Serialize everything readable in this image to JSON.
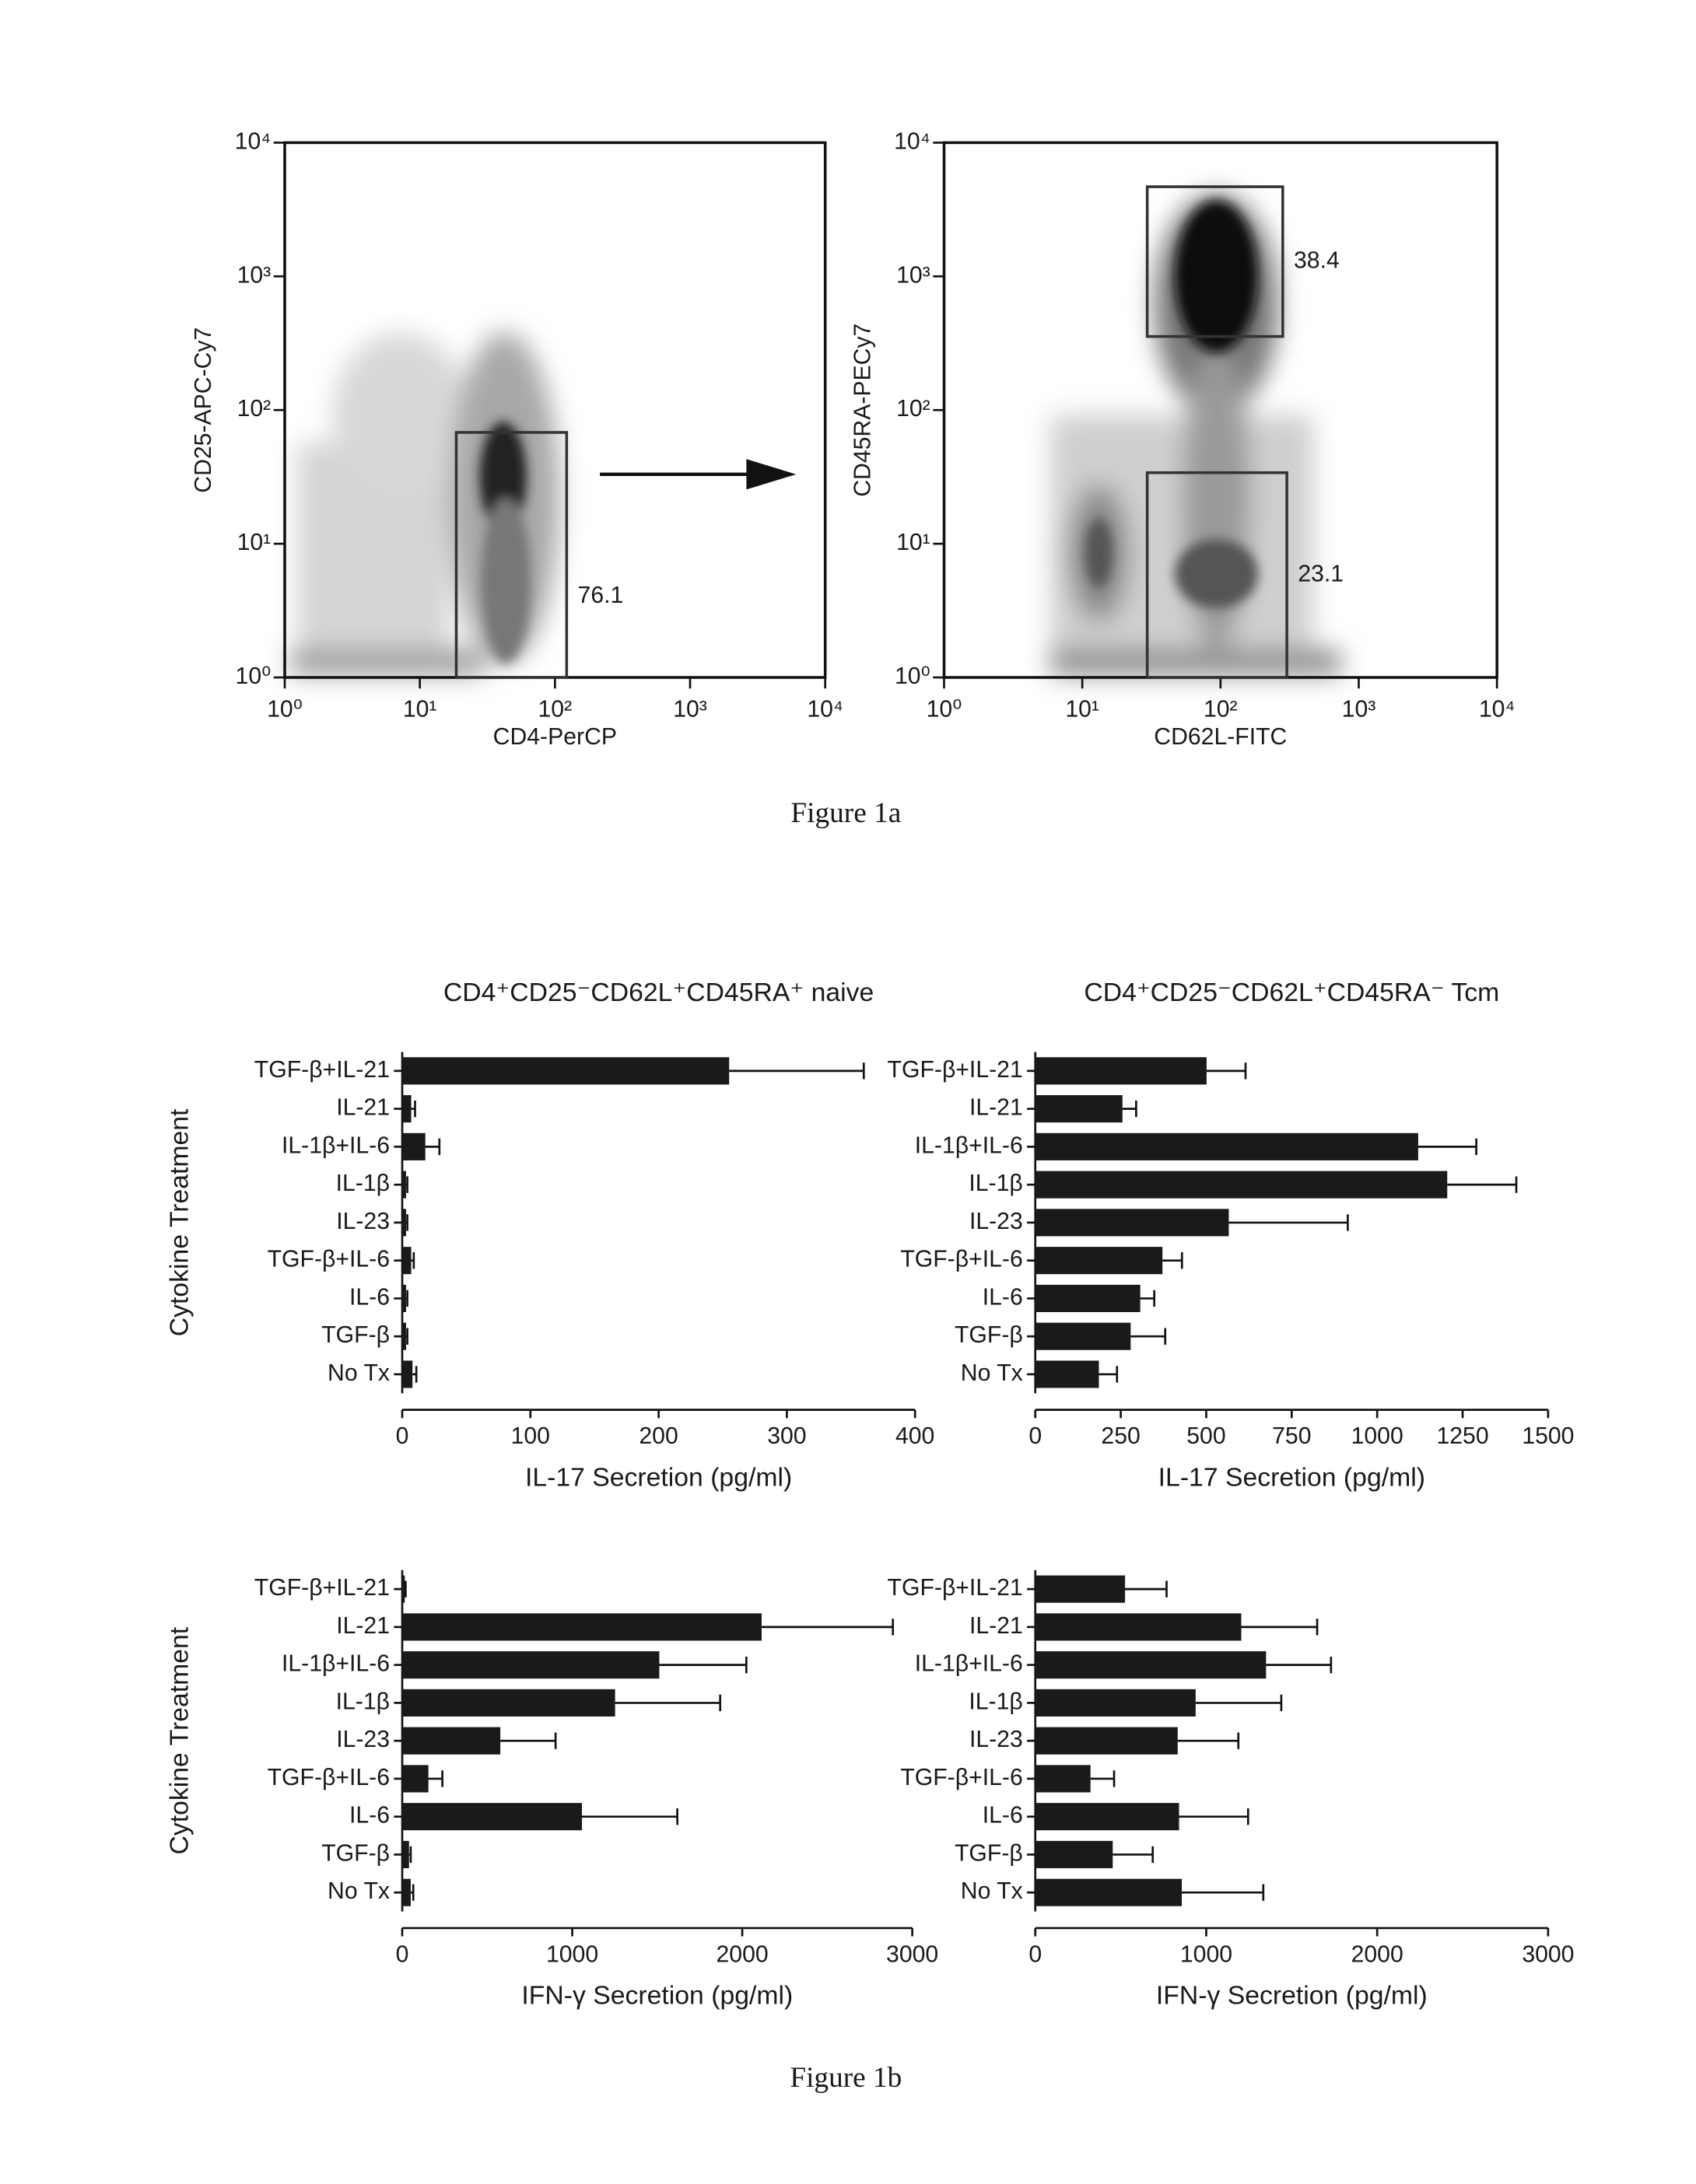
{
  "figure_captions": [
    "Figure 1a",
    "Figure 1b"
  ],
  "chart_data": [
    {
      "type": "density",
      "x_label": "CD4-PerCP",
      "y_label": "CD25-APC-Cy7",
      "log_x": true,
      "log_y": true,
      "xlim": [
        1,
        10000
      ],
      "ylim": [
        1,
        10000
      ],
      "xticks": [
        {
          "value": 1,
          "label": "10⁰"
        },
        {
          "value": 10,
          "label": "10¹"
        },
        {
          "value": 100,
          "label": "10²"
        },
        {
          "value": 1000,
          "label": "10³"
        },
        {
          "value": 10000,
          "label": "10⁴"
        }
      ],
      "yticks": [
        {
          "value": 1,
          "label": "10⁰"
        },
        {
          "value": 10,
          "label": "10¹"
        },
        {
          "value": 100,
          "label": "10²"
        },
        {
          "value": 1000,
          "label": "10³"
        },
        {
          "value": 10000,
          "label": "10⁴"
        }
      ],
      "gates": [
        {
          "percent": 76.1,
          "x": [
            18.6,
            122
          ],
          "y": [
            1,
            68
          ]
        }
      ]
    },
    {
      "type": "density",
      "x_label": "CD62L-FITC",
      "y_label": "CD45RA-PECy7",
      "log_x": true,
      "log_y": true,
      "xlim": [
        1,
        10000
      ],
      "ylim": [
        1,
        10000
      ],
      "xticks": [
        {
          "value": 1,
          "label": "10⁰"
        },
        {
          "value": 10,
          "label": "10¹"
        },
        {
          "value": 100,
          "label": "10²"
        },
        {
          "value": 1000,
          "label": "10³"
        },
        {
          "value": 10000,
          "label": "10⁴"
        }
      ],
      "yticks": [
        {
          "value": 1,
          "label": "10⁰"
        },
        {
          "value": 10,
          "label": "10¹"
        },
        {
          "value": 100,
          "label": "10²"
        },
        {
          "value": 1000,
          "label": "10³"
        },
        {
          "value": 10000,
          "label": "10⁴"
        }
      ],
      "gates": [
        {
          "percent": 38.4,
          "x": [
            29.5,
            282
          ],
          "y": [
            355,
            4680
          ]
        },
        {
          "percent": 23.1,
          "x": [
            29.5,
            302
          ],
          "y": [
            1,
            34
          ]
        }
      ]
    },
    {
      "type": "hbar",
      "title": "CD4⁺CD25⁻CD62L⁺CD45RA⁺ naive",
      "y_label": "Cytokine Treatment",
      "x_label": "IL-17 Secretion (pg/ml)",
      "categories": [
        "TGF-β+IL-21",
        "IL-21",
        "IL-1β+IL-6",
        "IL-1β",
        "IL-23",
        "TGF-β+IL-6",
        "IL-6",
        "TGF-β",
        "No Tx"
      ],
      "values": [
        255,
        7,
        18,
        3,
        3,
        7,
        3,
        3,
        8
      ],
      "errors": [
        105,
        3,
        11,
        1,
        1,
        2,
        1,
        1,
        3
      ],
      "color": "#1a1a1a",
      "xlim": [
        0,
        400
      ],
      "xticks": [
        0,
        100,
        200,
        300,
        400
      ]
    },
    {
      "type": "hbar",
      "title": "CD4⁺CD25⁻CD62L⁺CD45RA⁻ Tcm",
      "x_label": "IL-17 Secretion (pg/ml)",
      "categories": [
        "TGF-β+IL-21",
        "IL-21",
        "IL-1β+IL-6",
        "IL-1β",
        "IL-23",
        "TGF-β+IL-6",
        "IL-6",
        "TGF-β",
        "No Tx"
      ],
      "values": [
        501,
        255,
        1120,
        1205,
        566,
        372,
        307,
        279,
        186
      ],
      "errors": [
        114,
        40,
        170,
        202,
        348,
        57,
        41,
        101,
        53
      ],
      "color": "#1a1a1a",
      "xlim": [
        0,
        1500
      ],
      "xticks": [
        0,
        250,
        500,
        750,
        1000,
        1250,
        1500
      ]
    },
    {
      "type": "hbar",
      "y_label": "Cytokine Treatment",
      "x_label": "IFN-γ Secretion (pg/ml)",
      "categories": [
        "TGF-β+IL-21",
        "IL-21",
        "IL-1β+IL-6",
        "IL-1β",
        "IL-23",
        "TGF-β+IL-6",
        "IL-6",
        "TGF-β",
        "No Tx"
      ],
      "values": [
        15,
        2114,
        1512,
        1252,
        577,
        154,
        1057,
        40,
        50
      ],
      "errors": [
        5,
        772,
        512,
        618,
        325,
        82,
        561,
        10,
        15
      ],
      "color": "#1a1a1a",
      "xlim": [
        0,
        3000
      ],
      "xticks": [
        0,
        1000,
        2000,
        3000
      ]
    },
    {
      "type": "hbar",
      "x_label": "IFN-γ Secretion (pg/ml)",
      "categories": [
        "TGF-β+IL-21",
        "IL-21",
        "IL-1β+IL-6",
        "IL-1β",
        "IL-23",
        "TGF-β+IL-6",
        "IL-6",
        "TGF-β",
        "No Tx"
      ],
      "values": [
        525,
        1205,
        1350,
        938,
        833,
        323,
        841,
        453,
        857
      ],
      "errors": [
        243,
        444,
        380,
        501,
        355,
        138,
        404,
        234,
        477
      ],
      "color": "#1a1a1a",
      "xlim": [
        0,
        3000
      ],
      "xticks": [
        0,
        1000,
        2000,
        3000
      ]
    }
  ]
}
